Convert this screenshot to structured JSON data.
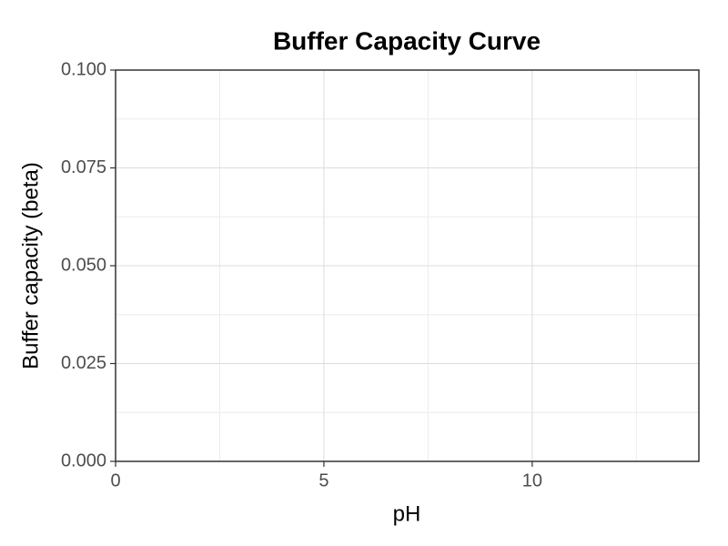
{
  "chart_data": {
    "type": "line",
    "title": "Buffer Capacity Curve",
    "x_label": "pH",
    "y_label": "Buffer capacity (beta)",
    "series": [],
    "xlim": [
      0,
      14
    ],
    "xticks": [
      0,
      5,
      10
    ],
    "ylim": [
      0,
      0.1
    ],
    "yticks": [
      {
        "value": 0,
        "label": "0.000"
      },
      {
        "value": 0.025,
        "label": "0.025"
      },
      {
        "value": 0.05,
        "label": "0.050"
      },
      {
        "value": 0.075,
        "label": "0.075"
      },
      {
        "value": 0.1,
        "label": "0.100"
      }
    ],
    "grid": true,
    "minor_grid": true
  }
}
